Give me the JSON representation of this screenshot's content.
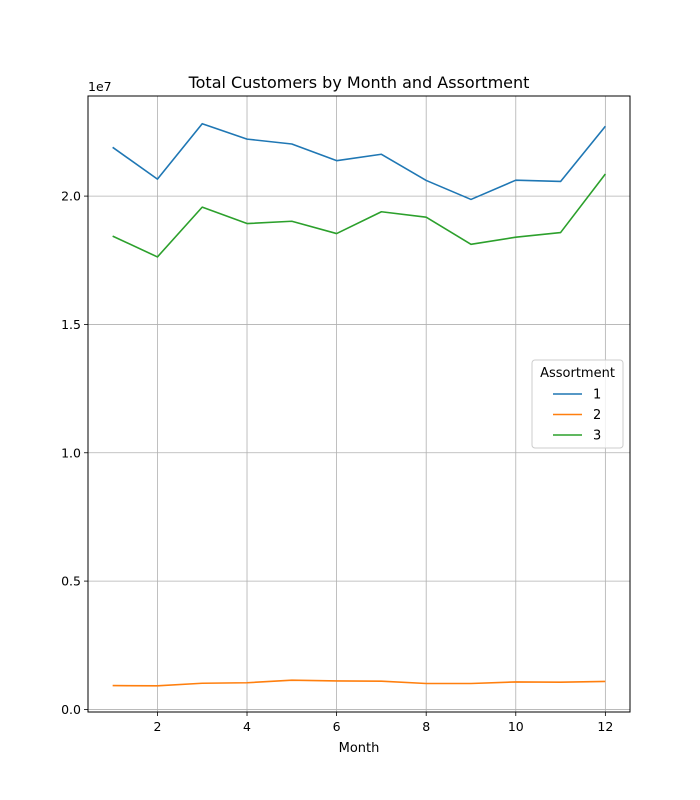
{
  "chart_data": {
    "type": "line",
    "title": "Total Customers by Month and Assortment",
    "xlabel": "Month",
    "ylabel": "",
    "offset_label": "1e7",
    "x": [
      1,
      2,
      3,
      4,
      5,
      6,
      7,
      8,
      9,
      10,
      11,
      12
    ],
    "xticks": [
      2,
      4,
      6,
      8,
      10,
      12
    ],
    "yticks": [
      0.0,
      0.5,
      1.0,
      1.5,
      2.0
    ],
    "ytick_labels": [
      "0.0",
      "0.5",
      "1.0",
      "1.5",
      "2.0"
    ],
    "xlim": [
      0.45,
      12.55
    ],
    "ylim": [
      -0.01,
      2.39
    ],
    "y_unit_multiplier": 10000000,
    "grid": true,
    "legend": {
      "title": "Assortment",
      "placement": "center-right"
    },
    "series": [
      {
        "name": "1",
        "color": "#1f77b4",
        "values": [
          2.19,
          2.066,
          2.282,
          2.222,
          2.203,
          2.138,
          2.163,
          2.061,
          1.987,
          2.062,
          2.057,
          2.272
        ]
      },
      {
        "name": "2",
        "color": "#ff7f0e",
        "values": [
          0.093,
          0.092,
          0.102,
          0.104,
          0.114,
          0.111,
          0.11,
          0.101,
          0.101,
          0.107,
          0.106,
          0.109
        ]
      },
      {
        "name": "3",
        "color": "#2ca02c",
        "values": [
          1.844,
          1.763,
          1.957,
          1.893,
          1.902,
          1.854,
          1.939,
          1.918,
          1.812,
          1.84,
          1.858,
          2.086
        ]
      }
    ]
  }
}
